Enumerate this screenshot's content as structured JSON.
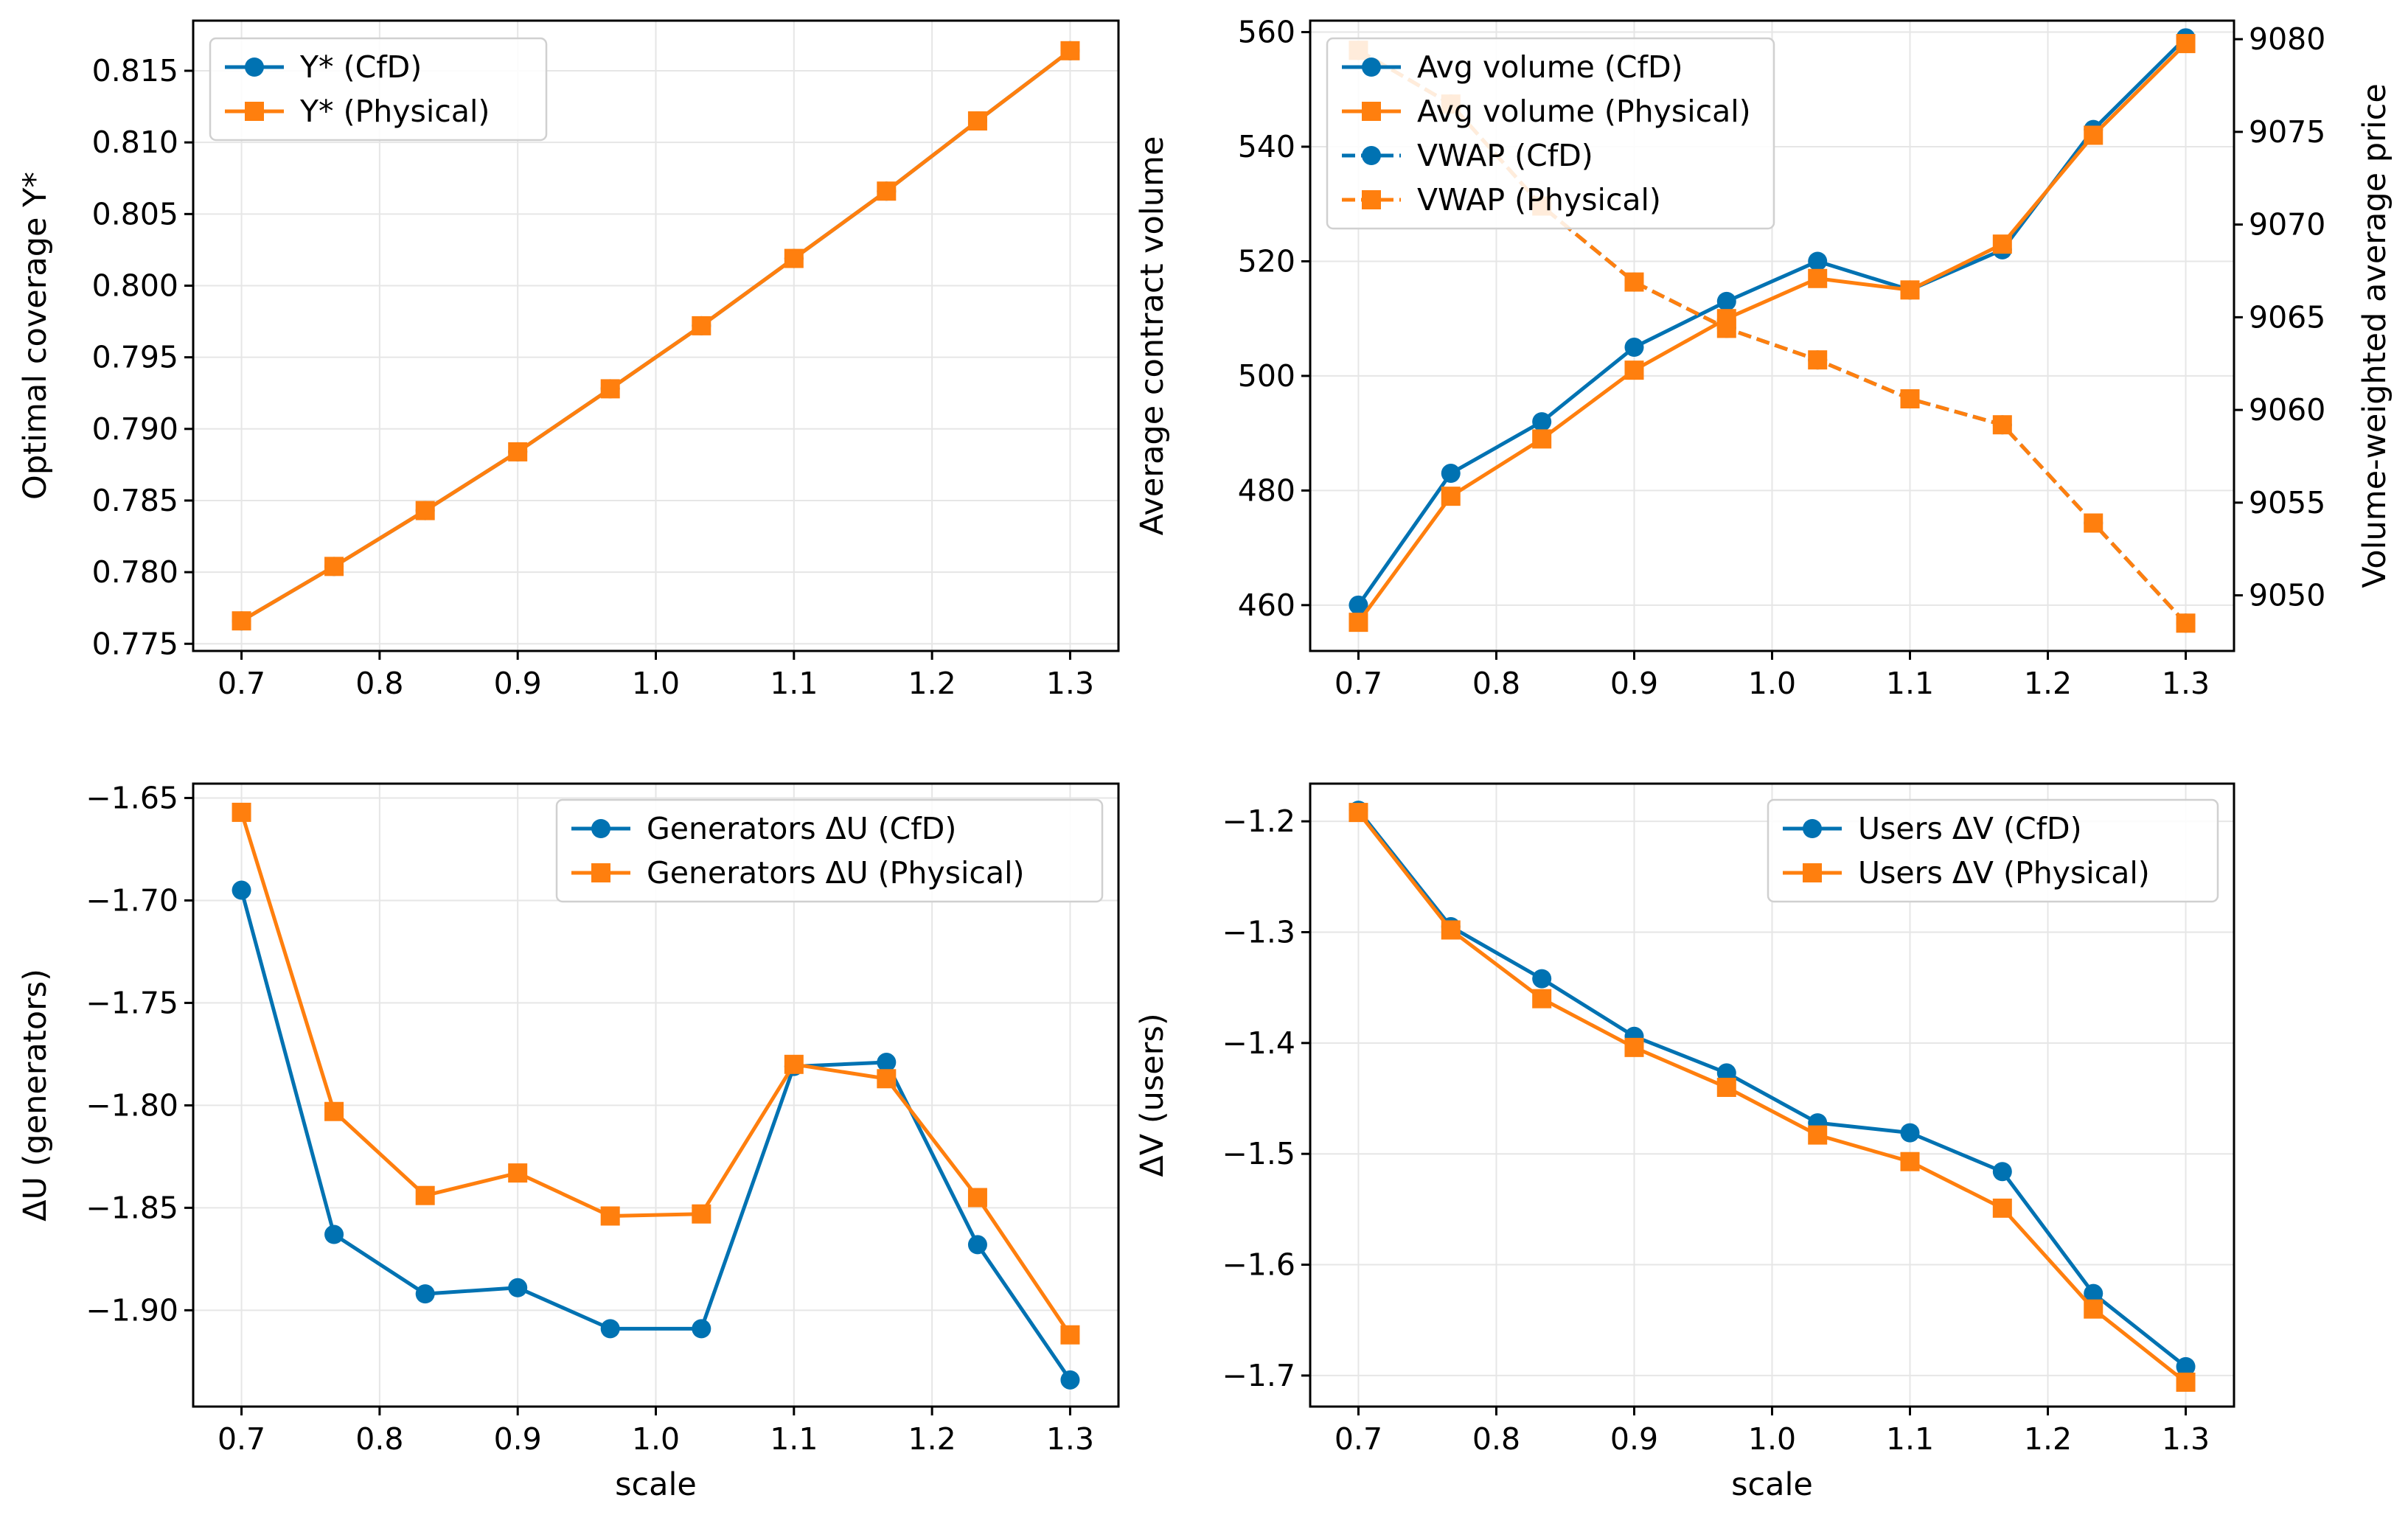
{
  "colors": {
    "cfd": "#0072b2",
    "physical": "#ff7f0e"
  },
  "chart_data": [
    {
      "id": "coverage",
      "type": "line",
      "title": "",
      "xlabel": "",
      "ylabel": "Optimal coverage Y*",
      "xlim": [
        0.665,
        1.335
      ],
      "ylim": [
        0.7745,
        0.8185
      ],
      "grid": true,
      "legend": "upper left",
      "x_ticks": [
        0.7,
        0.8,
        0.9,
        1.0,
        1.1,
        1.2,
        1.3
      ],
      "x_tick_labels": [
        "0.7",
        "0.8",
        "0.9",
        "1.0",
        "1.1",
        "1.2",
        "1.3"
      ],
      "y_ticks": [
        0.775,
        0.78,
        0.785,
        0.79,
        0.795,
        0.8,
        0.805,
        0.81,
        0.815
      ],
      "y_tick_labels": [
        "0.775",
        "0.780",
        "0.785",
        "0.790",
        "0.795",
        "0.800",
        "0.805",
        "0.810",
        "0.815"
      ],
      "x": [
        0.7,
        0.767,
        0.833,
        0.9,
        0.967,
        1.033,
        1.1,
        1.167,
        1.233,
        1.3
      ],
      "series": [
        {
          "name": "Y* (CfD)",
          "color": "#0072b2",
          "marker": "circle",
          "dash": "solid",
          "axis": "left",
          "values": [
            0.7766,
            0.7804,
            0.7843,
            0.7884,
            0.7928,
            0.7972,
            0.8019,
            0.8066,
            0.8115,
            0.8164
          ]
        },
        {
          "name": "Y* (Physical)",
          "color": "#ff7f0e",
          "marker": "square",
          "dash": "solid",
          "axis": "left",
          "values": [
            0.7766,
            0.7804,
            0.7843,
            0.7884,
            0.7928,
            0.7972,
            0.8019,
            0.8066,
            0.8115,
            0.8164
          ]
        }
      ]
    },
    {
      "id": "volume-vwap",
      "type": "line",
      "title": "",
      "xlabel": "",
      "ylabel": "Average contract volume",
      "y2label": "Volume-weighted average price",
      "xlim": [
        0.665,
        1.335
      ],
      "ylim": [
        452,
        562
      ],
      "y2lim": [
        9047,
        9081
      ],
      "grid": true,
      "legend": "upper left",
      "x_ticks": [
        0.7,
        0.8,
        0.9,
        1.0,
        1.1,
        1.2,
        1.3
      ],
      "x_tick_labels": [
        "0.7",
        "0.8",
        "0.9",
        "1.0",
        "1.1",
        "1.2",
        "1.3"
      ],
      "y_ticks": [
        460,
        480,
        500,
        520,
        540,
        560
      ],
      "y_tick_labels": [
        "460",
        "480",
        "500",
        "520",
        "540",
        "560"
      ],
      "y2_ticks": [
        9050,
        9055,
        9060,
        9065,
        9070,
        9075,
        9080
      ],
      "y2_tick_labels": [
        "9050",
        "9055",
        "9060",
        "9065",
        "9070",
        "9075",
        "9080"
      ],
      "x": [
        0.7,
        0.767,
        0.833,
        0.9,
        0.967,
        1.033,
        1.1,
        1.167,
        1.233,
        1.3
      ],
      "series": [
        {
          "name": "Avg volume (CfD)",
          "color": "#0072b2",
          "marker": "circle",
          "dash": "solid",
          "axis": "left",
          "values": [
            460,
            483,
            492,
            505,
            513,
            520,
            515,
            522,
            543,
            559
          ]
        },
        {
          "name": "Avg volume (Physical)",
          "color": "#ff7f0e",
          "marker": "square",
          "dash": "solid",
          "axis": "left",
          "values": [
            457,
            479,
            489,
            501,
            510,
            517,
            515,
            523,
            542,
            558
          ]
        },
        {
          "name": "VWAP (CfD)",
          "color": "#0072b2",
          "marker": "circle",
          "dash": "dashed",
          "axis": "right",
          "values": [
            9079.4,
            9076.5,
            9071.0,
            9066.9,
            9064.4,
            9062.7,
            9060.6,
            9059.2,
            9053.9,
            9048.5
          ]
        },
        {
          "name": "VWAP (Physical)",
          "color": "#ff7f0e",
          "marker": "square",
          "dash": "dashed",
          "axis": "right",
          "values": [
            9079.4,
            9076.5,
            9071.0,
            9066.9,
            9064.4,
            9062.7,
            9060.6,
            9059.2,
            9053.9,
            9048.5
          ]
        }
      ]
    },
    {
      "id": "generators",
      "type": "line",
      "title": "",
      "xlabel": "scale",
      "ylabel": "ΔU (generators)",
      "xlim": [
        0.665,
        1.335
      ],
      "ylim": [
        -1.947,
        -1.643
      ],
      "grid": true,
      "legend": "upper right",
      "x_ticks": [
        0.7,
        0.8,
        0.9,
        1.0,
        1.1,
        1.2,
        1.3
      ],
      "x_tick_labels": [
        "0.7",
        "0.8",
        "0.9",
        "1.0",
        "1.1",
        "1.2",
        "1.3"
      ],
      "y_ticks": [
        -1.9,
        -1.85,
        -1.8,
        -1.75,
        -1.7,
        -1.65
      ],
      "y_tick_labels": [
        "−1.90",
        "−1.85",
        "−1.80",
        "−1.75",
        "−1.70",
        "−1.65"
      ],
      "x": [
        0.7,
        0.767,
        0.833,
        0.9,
        0.967,
        1.033,
        1.1,
        1.167,
        1.233,
        1.3
      ],
      "series": [
        {
          "name": "Generators ΔU (CfD)",
          "color": "#0072b2",
          "marker": "circle",
          "dash": "solid",
          "axis": "left",
          "values": [
            -1.695,
            -1.863,
            -1.892,
            -1.889,
            -1.909,
            -1.909,
            -1.781,
            -1.779,
            -1.868,
            -1.934
          ]
        },
        {
          "name": "Generators ΔU (Physical)",
          "color": "#ff7f0e",
          "marker": "square",
          "dash": "solid",
          "axis": "left",
          "values": [
            -1.657,
            -1.803,
            -1.844,
            -1.833,
            -1.854,
            -1.853,
            -1.78,
            -1.787,
            -1.845,
            -1.912
          ]
        }
      ]
    },
    {
      "id": "users",
      "type": "line",
      "title": "",
      "xlabel": "scale",
      "ylabel": "ΔV (users)",
      "xlim": [
        0.665,
        1.335
      ],
      "ylim": [
        -1.728,
        -1.166
      ],
      "grid": true,
      "legend": "upper right",
      "x_ticks": [
        0.7,
        0.8,
        0.9,
        1.0,
        1.1,
        1.2,
        1.3
      ],
      "x_tick_labels": [
        "0.7",
        "0.8",
        "0.9",
        "1.0",
        "1.1",
        "1.2",
        "1.3"
      ],
      "y_ticks": [
        -1.7,
        -1.6,
        -1.5,
        -1.4,
        -1.3,
        -1.2
      ],
      "y_tick_labels": [
        "−1.7",
        "−1.6",
        "−1.5",
        "−1.4",
        "−1.3",
        "−1.2"
      ],
      "x": [
        0.7,
        0.767,
        0.833,
        0.9,
        0.967,
        1.033,
        1.1,
        1.167,
        1.233,
        1.3
      ],
      "series": [
        {
          "name": "Users ΔV (CfD)",
          "color": "#0072b2",
          "marker": "circle",
          "dash": "solid",
          "axis": "left",
          "values": [
            -1.19,
            -1.295,
            -1.342,
            -1.394,
            -1.427,
            -1.472,
            -1.481,
            -1.516,
            -1.626,
            -1.692
          ]
        },
        {
          "name": "Users ΔV (Physical)",
          "color": "#ff7f0e",
          "marker": "square",
          "dash": "solid",
          "axis": "left",
          "values": [
            -1.192,
            -1.298,
            -1.36,
            -1.404,
            -1.44,
            -1.483,
            -1.507,
            -1.549,
            -1.64,
            -1.706
          ]
        }
      ]
    }
  ]
}
